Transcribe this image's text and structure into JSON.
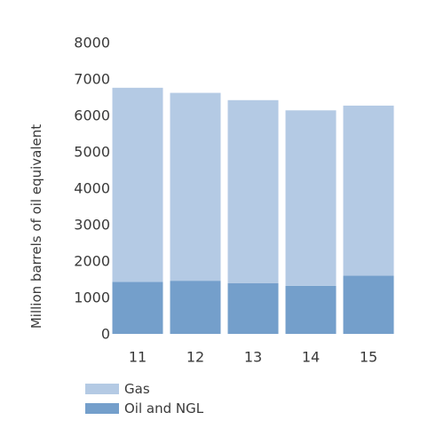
{
  "chart_data": {
    "type": "bar",
    "stacked": true,
    "categories": [
      "11",
      "12",
      "13",
      "14",
      "15"
    ],
    "series": [
      {
        "name": "Oil and NGL",
        "color": "#749fcb",
        "values": [
          1430,
          1460,
          1390,
          1320,
          1600
        ]
      },
      {
        "name": "Gas",
        "color": "#b4cae4",
        "values": [
          5330,
          5160,
          5030,
          4820,
          4670
        ]
      }
    ],
    "ylabel": "Million barrels of oil equivalent",
    "xlabel": "",
    "title": "",
    "ylim": [
      0,
      8000
    ],
    "yticks": [
      0,
      1000,
      2000,
      3000,
      4000,
      5000,
      6000,
      7000,
      8000
    ],
    "grid": false,
    "legend_placement": "bottom-left",
    "legend_order": [
      "Gas",
      "Oil and NGL"
    ]
  }
}
